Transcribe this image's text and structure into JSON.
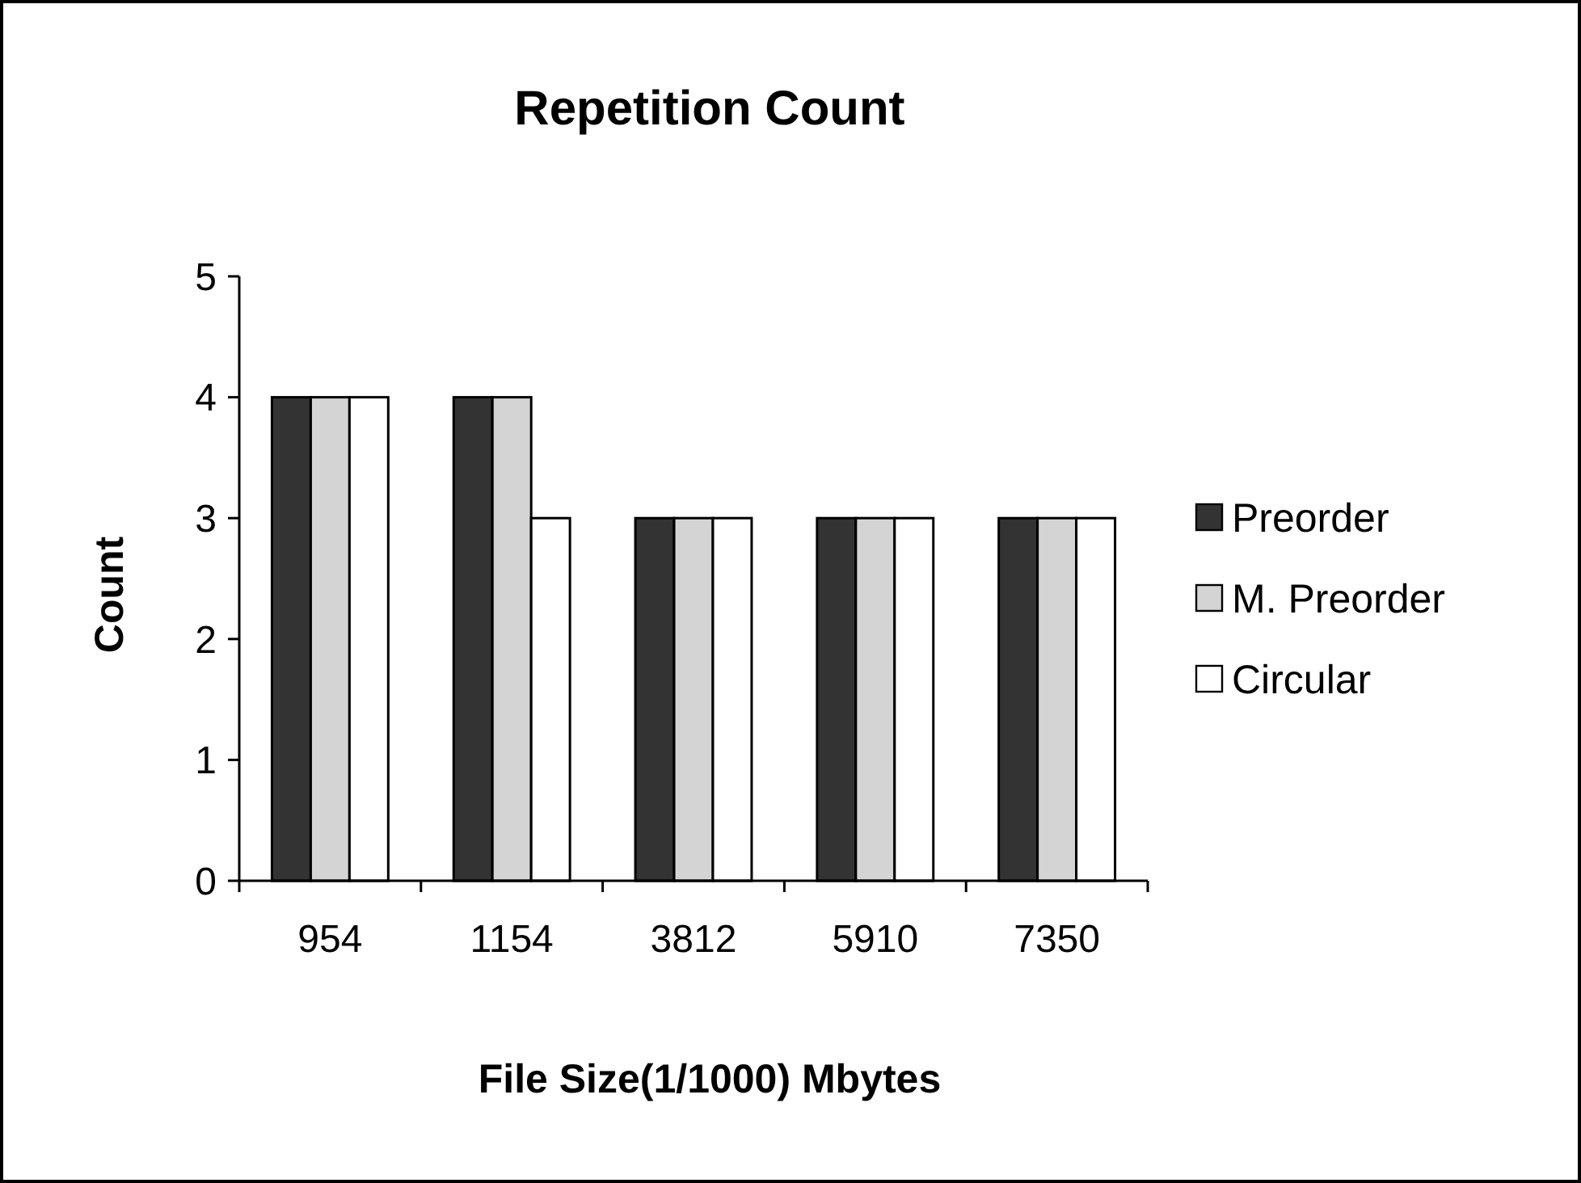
{
  "chart_data": {
    "type": "bar",
    "title": "Repetition Count",
    "xlabel": "File Size(1/1000) Mbytes",
    "ylabel": "Count",
    "categories": [
      "954",
      "1154",
      "3812",
      "5910",
      "7350"
    ],
    "series": [
      {
        "name": "Preorder",
        "color": "#333333",
        "values": [
          4,
          4,
          3,
          3,
          3
        ]
      },
      {
        "name": "M. Preorder",
        "color": "#d4d4d4",
        "values": [
          4,
          4,
          3,
          3,
          3
        ]
      },
      {
        "name": "Circular",
        "color": "#ffffff",
        "values": [
          4,
          3,
          3,
          3,
          3
        ]
      }
    ],
    "ylim": [
      0,
      5
    ],
    "yticks": [
      0,
      1,
      2,
      3,
      4,
      5
    ],
    "grid": false,
    "legend": "right"
  }
}
